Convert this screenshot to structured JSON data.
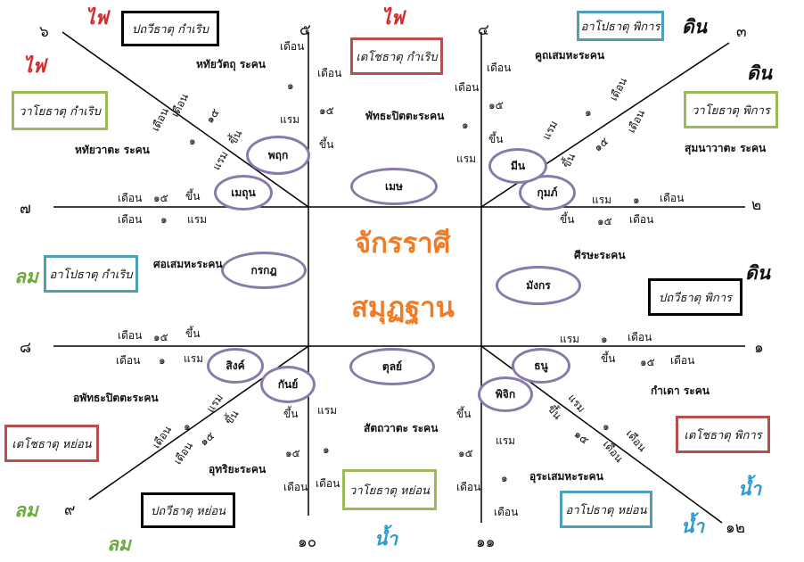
{
  "colors": {
    "fire": "#d62a2a",
    "earth": "#111111",
    "wind": "#6aab3a",
    "water": "#2e9bd0",
    "box_red": "#b5504e",
    "box_green": "#9bbb59",
    "box_blue": "#4f9fb8",
    "box_black": "#000000",
    "oval": "#8a7aa8",
    "title": "#f07b25",
    "line": "#000000"
  },
  "title": {
    "line1": "จักรราศี",
    "line2": "สมุฏฐาน"
  },
  "numbers": {
    "n1": "๑",
    "n2": "๒",
    "n3": "๓",
    "n4": "๔",
    "n5": "๕",
    "n6": "๖",
    "n7": "๗",
    "n8": "๘",
    "n9": "๙",
    "n10": "๑๐",
    "n11": "๑๑",
    "n12": "๑๒"
  },
  "elements": {
    "fire": "ไฟ",
    "earth": "ดิน",
    "wind": "ลม",
    "water": "น้ำ"
  },
  "boxes": {
    "pathavi_kamrerb": "ปถวีธาตุ กำเริบ",
    "techo_kamrerb": "เตโชธาตุ กำเริบ",
    "apo_pikan": "อาโปธาตุ พิการ",
    "vayo_kamrerb": "วาโยธาตุ กำเริบ",
    "vayo_pikan": "วาโยธาตุ พิการ",
    "apo_kamrerb": "อาโปธาตุ กำเริบ",
    "pathavi_pikan": "ปถวีธาตุ พิการ",
    "techo_yon": "เตโชธาตุ หย่อน",
    "techo_pikan": "เตโชธาตุ พิการ",
    "pathavi_yon": "ปถวีธาตุ หย่อน",
    "vayo_yon": "วาโยธาตุ หย่อน",
    "apo_yon": "อาโปธาตุ หย่อน"
  },
  "zodiac": {
    "mesa": "เมษ",
    "pruek": "พฤก",
    "methun": "เมถุน",
    "kakot": "กรกฎ",
    "sing": "สิงค์",
    "kan": "กันย์",
    "tul": "ตุลย์",
    "pichik": "พิจิก",
    "thanu": "ธนู",
    "mangkon": "มังกร",
    "kum": "กุมภ์",
    "min": "มีน"
  },
  "organs": {
    "hathaivatthu": "หทัยวัตถุ ระคน",
    "phattha": "พัทธะปิตตะระคน",
    "khuth": "คูถเสมหะระคน",
    "hathaivata": "หทัยวาตะ ระคน",
    "sumana": "สุมนาวาตะ ระคน",
    "sotsemha": "ศอเสมหะระคน",
    "sisa": "ศีรษะระคน",
    "aphattha": "อพัทธะปิตตะระคน",
    "kamdao": "กำเดา ระคน",
    "sattava": "สัตถวาตะ ระคน",
    "uthari": "อุทริยะระคน",
    "urasemha": "อุระเสมหะระคน"
  },
  "words": {
    "month": "เดือน",
    "rem": "แรม",
    "khuen": "ขึ้น",
    "d1": "๑",
    "d15": "๑๕"
  }
}
